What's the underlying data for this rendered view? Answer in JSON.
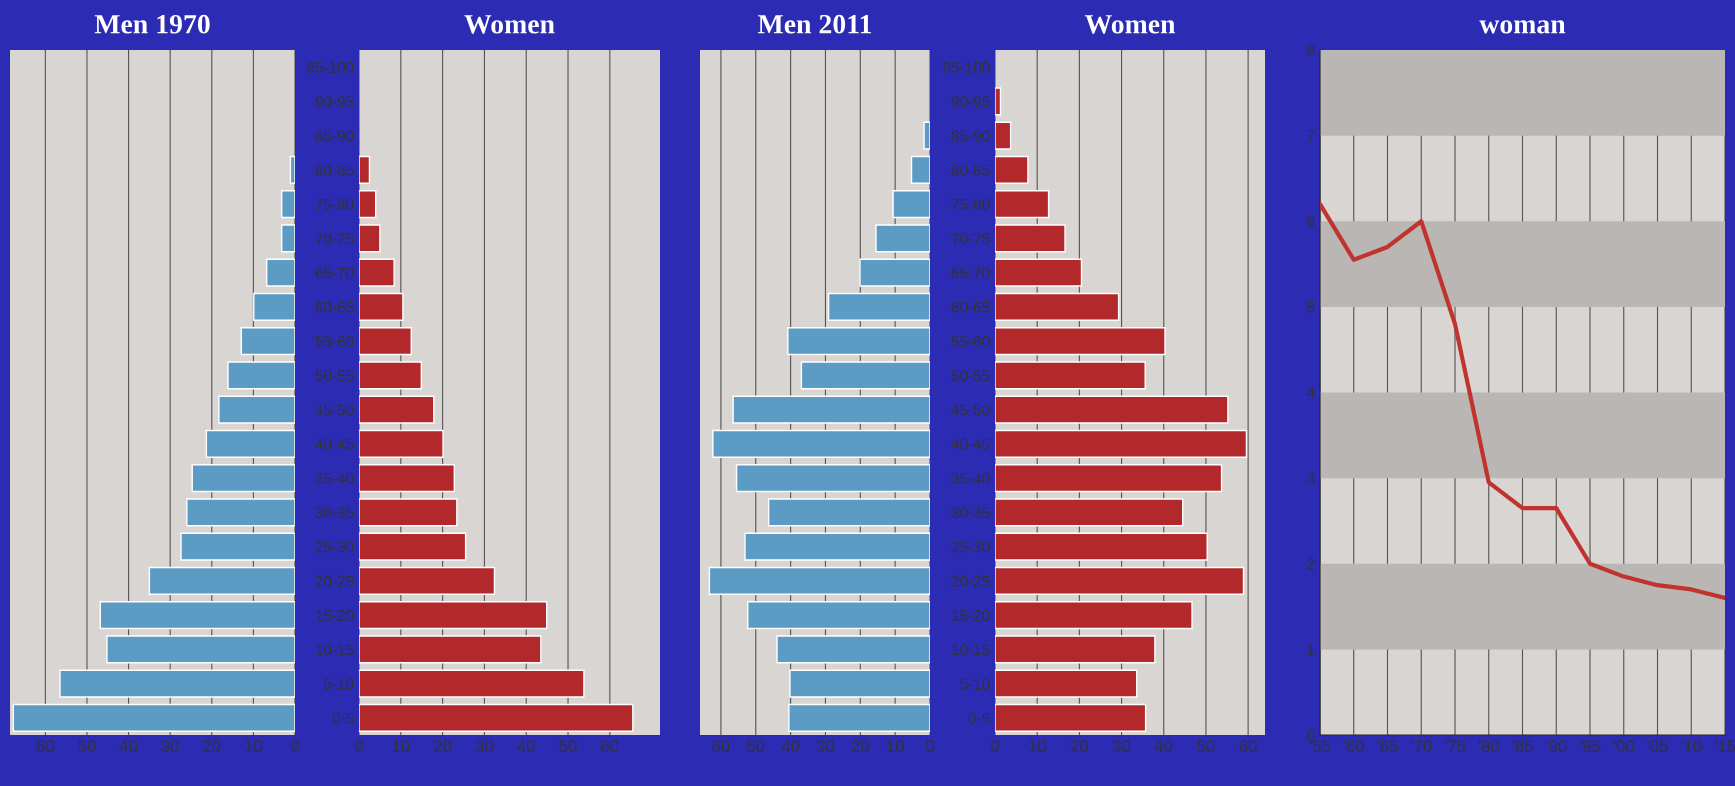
{
  "chart_data": [
    {
      "type": "bar",
      "orientation": "horizontal",
      "title": "Men 1970",
      "categories": [
        null,
        null,
        null,
        null,
        null,
        null,
        null,
        null,
        null,
        null,
        null,
        null,
        null,
        null,
        null,
        null,
        null,
        null,
        null,
        null
      ],
      "values": [
        null,
        null,
        null,
        1.1,
        3.2,
        3.2,
        6.8,
        9.9,
        12.9,
        16.1,
        18.3,
        21.3,
        24.7,
        26,
        27.4,
        35,
        46.8,
        45.2,
        56.5,
        67.7
      ],
      "color": "#5b9bc4",
      "xlim": [
        68.5,
        0
      ],
      "xticks": [
        0,
        10,
        20,
        30,
        40,
        50,
        60
      ],
      "grid": "x",
      "tick_labels": "x"
    },
    {
      "type": "bar",
      "orientation": "horizontal",
      "title": "Women",
      "categories": [
        "95-100",
        "90-95",
        "85-90",
        "80-85",
        "75-80",
        "70-75",
        "65-70",
        "60-65",
        "55-60",
        "50-55",
        "45-50",
        "40-45",
        "35-40",
        "30-35",
        "25-30",
        "20-25",
        "15-20",
        "10-15",
        "5-10",
        "0-5"
      ],
      "values": [
        null,
        null,
        null,
        2.5,
        4,
        5,
        8.4,
        10.5,
        12.5,
        14.9,
        17.9,
        20.1,
        22.8,
        23.4,
        25.5,
        32.4,
        44.9,
        43.5,
        53.8,
        65.5
      ],
      "color": "#b3282a",
      "xlim": [
        0,
        72
      ],
      "xticks": [
        0,
        10,
        20,
        30,
        40,
        50,
        60
      ],
      "grid": "x"
    },
    {
      "type": "bar",
      "orientation": "horizontal",
      "title": "Men 2011",
      "categories": [
        null,
        null,
        null,
        null,
        null,
        null,
        null,
        null,
        null,
        null,
        null,
        null,
        null,
        null,
        null,
        null,
        null,
        null,
        null,
        null
      ],
      "values": [
        null,
        null,
        1.7,
        5.3,
        10.6,
        15.5,
        20.1,
        29.1,
        40.8,
        36.9,
        56.5,
        62.3,
        55.5,
        46.3,
        53.1,
        63.3,
        52.3,
        43.9,
        40.2,
        40.5
      ],
      "color": "#5b9bc4",
      "xlim": [
        66,
        0
      ],
      "xticks": [
        0,
        10,
        20,
        30,
        40,
        50,
        60
      ],
      "grid": "x",
      "tick_labels": "x"
    },
    {
      "type": "bar",
      "orientation": "horizontal",
      "title": "Women",
      "categories": [
        "95-100",
        "90-95",
        "85-90",
        "80-85",
        "75-80",
        "70-75",
        "65-70",
        "60-65",
        "55-60",
        "50-55",
        "45-50",
        "40-45",
        "35-40",
        "30-35",
        "25-30",
        "20-25",
        "15-20",
        "10-15",
        "5-10",
        "0-5"
      ],
      "values": [
        null,
        1.3,
        3.7,
        7.8,
        12.7,
        16.6,
        20.5,
        29.3,
        40.3,
        35.6,
        55.2,
        59.6,
        53.7,
        44.5,
        50.3,
        58.9,
        46.7,
        37.9,
        33.6,
        35.7
      ],
      "color": "#b3282a",
      "xlim": [
        0,
        64
      ],
      "xticks": [
        0,
        10,
        20,
        30,
        40,
        50,
        60
      ],
      "grid": "x"
    },
    {
      "type": "line",
      "title": "woman",
      "x": [
        1955,
        1960,
        1965,
        1970,
        1975,
        1980,
        1985,
        1990,
        1995,
        2000,
        2005,
        2010,
        2015
      ],
      "values": [
        6.2,
        5.55,
        5.7,
        6.0,
        4.8,
        2.95,
        2.65,
        2.65,
        2.0,
        1.85,
        1.75,
        1.7,
        1.6
      ],
      "color": "#c0332e",
      "xlim": [
        1955,
        2015
      ],
      "ylim": [
        0,
        8
      ],
      "xticks": [
        {
          "value": 1955,
          "label": "'55"
        },
        {
          "value": 1960,
          "label": "'60"
        },
        {
          "value": 1965,
          "label": "'65"
        },
        {
          "value": 1970,
          "label": "'70"
        },
        {
          "value": 1975,
          "label": "'75"
        },
        {
          "value": 1980,
          "label": "'80"
        },
        {
          "value": 1985,
          "label": "'85"
        },
        {
          "value": 1990,
          "label": "'90"
        },
        {
          "value": 1995,
          "label": "'95"
        },
        {
          "value": 2000,
          "label": "'00"
        },
        {
          "value": 2005,
          "label": "'05"
        },
        {
          "value": 2010,
          "label": "'10"
        },
        {
          "value": 2015,
          "label": "'15"
        }
      ],
      "yticks": [
        0,
        1,
        2,
        3,
        4,
        5,
        6,
        7,
        8
      ],
      "grid": "x",
      "bands": [
        {
          "axis": "y",
          "from": 1,
          "to": 2,
          "color": "#b9b6b4"
        },
        {
          "axis": "y",
          "from": 3,
          "to": 4,
          "color": "#b9b6b4"
        },
        {
          "axis": "y",
          "from": 5,
          "to": 6,
          "color": "#b9b6b4"
        },
        {
          "axis": "y",
          "from": 7,
          "to": 8,
          "color": "#b9b6b4"
        }
      ]
    }
  ]
}
